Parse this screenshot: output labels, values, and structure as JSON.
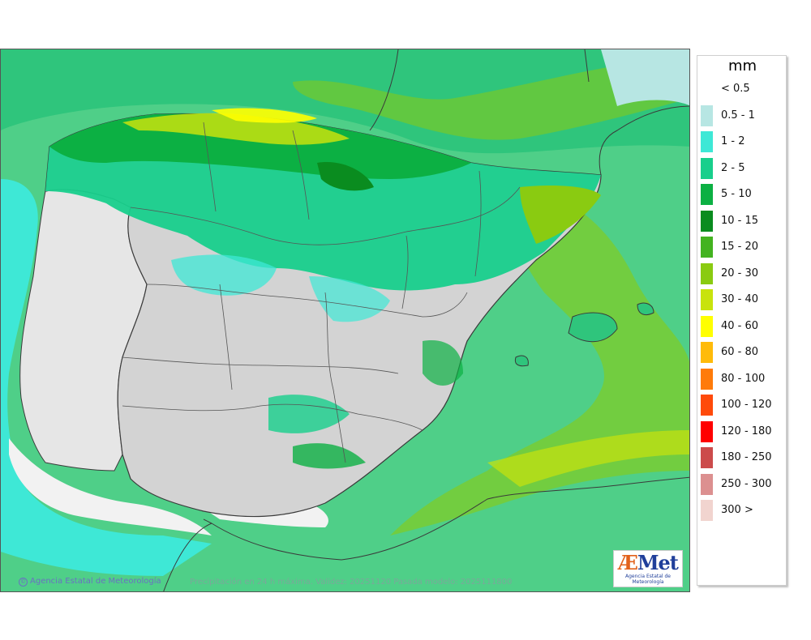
{
  "map": {
    "credit": "Agencia Estatal de Meteorología",
    "caption": "Precipitación en 24 h máxima. Validez: 20251120 Pasada modelo: 2025111800",
    "logo": {
      "text_a": "Æ",
      "text_b": "Met",
      "sub": "Agencia Estatal de Meteorología"
    },
    "colors": {
      "land_no_rain": "#dcdcdc",
      "sea_dry": "#f2f2f2",
      "boundary": "#3a3a3a"
    }
  },
  "legend": {
    "unit": "mm",
    "items": [
      {
        "label": "< 0.5",
        "color": "#ffffff"
      },
      {
        "label": "0.5 - 1",
        "color": "#b7e6e3"
      },
      {
        "label": "1 - 2",
        "color": "#3ee8d6"
      },
      {
        "label": "2 - 5",
        "color": "#18cf8c"
      },
      {
        "label": "5 - 10",
        "color": "#0cb043"
      },
      {
        "label": "10 - 15",
        "color": "#0a8c1f"
      },
      {
        "label": "15 - 20",
        "color": "#43b320"
      },
      {
        "label": "20 - 30",
        "color": "#8acb11"
      },
      {
        "label": "30 - 40",
        "color": "#c8e30d"
      },
      {
        "label": "40 - 60",
        "color": "#ffff00"
      },
      {
        "label": "60 - 80",
        "color": "#ffbb0a"
      },
      {
        "label": "80 - 100",
        "color": "#ff7b0a"
      },
      {
        "label": "100 - 120",
        "color": "#ff4a0a"
      },
      {
        "label": "120 - 180",
        "color": "#ff0000"
      },
      {
        "label": "180 - 250",
        "color": "#cc4b4b"
      },
      {
        "label": "250 - 300",
        "color": "#dc9090"
      },
      {
        "label": "300 >",
        "color": "#f1d4cf"
      }
    ]
  }
}
